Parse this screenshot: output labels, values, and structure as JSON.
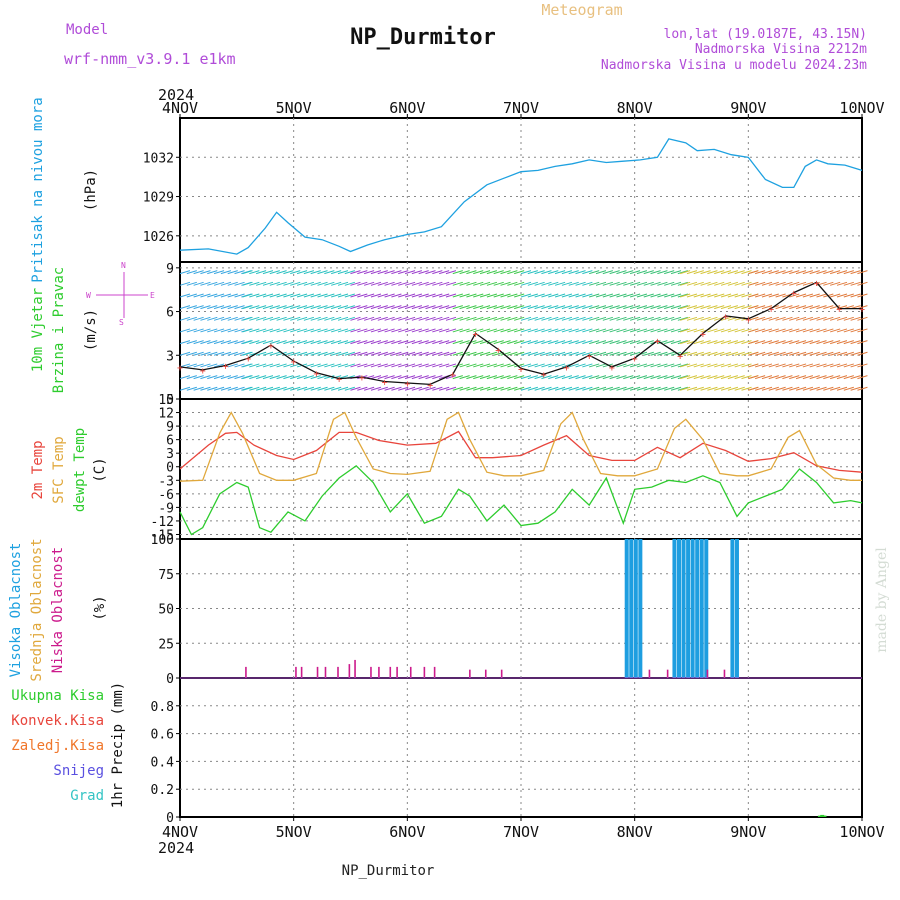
{
  "header": {
    "model_label": "Model",
    "model_name": "wrf-nmm_v3.9.1 e1km",
    "title": "NP_Durmitor",
    "subtitle": "Meteogram",
    "coords": "lon,lat (19.0187E, 43.15N)",
    "elevation": "Nadmorska Visina 2212m",
    "model_elevation": "Nadmorska Visina u modelu 2024.23m",
    "footer_station": "NP_Durmitor",
    "credit": "made by Angel",
    "year": "2024"
  },
  "colors": {
    "pressure": "#1ea1e0",
    "temp2m": "#e8453c",
    "sfc": "#e0a83c",
    "dewpt": "#2ecc2e",
    "high_cloud": "#1e9ee0",
    "low_cloud": "#cc1a8c",
    "wind_label": "#cc44cc",
    "label_purple": "#b04cd8"
  },
  "x_axis": {
    "ticks": [
      "4NOV",
      "5NOV",
      "6NOV",
      "7NOV",
      "8NOV",
      "9NOV",
      "10NOV"
    ]
  },
  "chart_data": [
    {
      "id": "pressure",
      "type": "line",
      "ylabel_name": "Pritisak na nivou mora",
      "ylabel_unit": "(hPa)",
      "ylim": [
        1024,
        1035
      ],
      "yticks": [
        "1026",
        "1029",
        "1032"
      ],
      "grid": true,
      "x_days": [
        0,
        0.25,
        0.5,
        0.6,
        0.75,
        0.85,
        0.95,
        1.1,
        1.25,
        1.4,
        1.5,
        1.65,
        1.8,
        2.0,
        2.15,
        2.3,
        2.5,
        2.7,
        2.85,
        3.0,
        3.15,
        3.3,
        3.45,
        3.6,
        3.75,
        3.9,
        4.05,
        4.2,
        4.3,
        4.45,
        4.55,
        4.7,
        4.85,
        5.0,
        5.15,
        5.3,
        5.4,
        5.5,
        5.6,
        5.7,
        5.85,
        6.0
      ],
      "values": [
        1024.9,
        1025.0,
        1024.6,
        1025.1,
        1026.6,
        1027.8,
        1027.0,
        1025.9,
        1025.7,
        1025.2,
        1024.8,
        1025.3,
        1025.7,
        1026.1,
        1026.3,
        1026.7,
        1028.6,
        1029.9,
        1030.4,
        1030.9,
        1031.0,
        1031.3,
        1031.5,
        1031.8,
        1031.6,
        1031.7,
        1031.8,
        1032.0,
        1033.4,
        1033.1,
        1032.5,
        1032.6,
        1032.2,
        1032.0,
        1030.3,
        1029.7,
        1029.7,
        1031.3,
        1031.8,
        1031.5,
        1031.4,
        1031.0
      ]
    },
    {
      "id": "wind",
      "type": "line",
      "ylabel_name": "10m Vjetar",
      "ylabel_name2": "Brzina i Pravac",
      "ylabel_unit": "(m/s)",
      "compass": "N, E, S, W",
      "ylim": [
        0,
        9.4
      ],
      "yticks": [
        "0",
        "3",
        "6",
        "9"
      ],
      "grid": true,
      "series": [
        {
          "name": "speed",
          "x_days": [
            0,
            0.2,
            0.4,
            0.6,
            0.8,
            1.0,
            1.2,
            1.4,
            1.6,
            1.8,
            2.0,
            2.2,
            2.4,
            2.6,
            2.8,
            3.0,
            3.2,
            3.4,
            3.6,
            3.8,
            4.0,
            4.2,
            4.4,
            4.6,
            4.8,
            5.0,
            5.2,
            5.4,
            5.6,
            5.8,
            6.0
          ],
          "values": [
            2.2,
            2.0,
            2.3,
            2.8,
            3.7,
            2.6,
            1.8,
            1.4,
            1.5,
            1.2,
            1.1,
            1.0,
            1.7,
            4.5,
            3.4,
            2.1,
            1.7,
            2.2,
            3.0,
            2.2,
            2.8,
            4.0,
            3.0,
            4.5,
            5.7,
            5.5,
            6.2,
            7.3,
            8.0,
            6.2,
            6.2
          ]
        }
      ]
    },
    {
      "id": "temperature",
      "type": "line",
      "ylabel_name": "2m Temp",
      "ylabel_name2": "SFC Temp",
      "ylabel_name3": "dewpt Temp",
      "ylabel_unit": "(C)",
      "ylim": [
        -16,
        15
      ],
      "yticks": [
        "-15",
        "-12",
        "-9",
        "-6",
        "-3",
        "0",
        "3",
        "6",
        "9",
        "12",
        "15"
      ],
      "grid": true,
      "series": [
        {
          "name": "2m Temp",
          "x_days": [
            0,
            0.25,
            0.4,
            0.5,
            0.65,
            0.85,
            1.0,
            1.2,
            1.4,
            1.55,
            1.75,
            2.0,
            2.25,
            2.45,
            2.6,
            2.75,
            3.0,
            3.2,
            3.4,
            3.6,
            3.8,
            4.0,
            4.2,
            4.4,
            4.6,
            4.8,
            5.0,
            5.2,
            5.4,
            5.6,
            5.8,
            6.0
          ],
          "values": [
            -0.5,
            4.8,
            7.4,
            7.6,
            4.8,
            2.5,
            1.6,
            3.6,
            7.6,
            7.6,
            5.8,
            4.8,
            5.2,
            7.8,
            2.0,
            2.0,
            2.5,
            4.8,
            6.9,
            2.5,
            1.4,
            1.4,
            4.3,
            2.0,
            5.2,
            3.6,
            1.2,
            1.8,
            3.1,
            0.2,
            -0.8,
            -1.2
          ]
        },
        {
          "name": "SFC Temp",
          "x_days": [
            0,
            0.2,
            0.35,
            0.45,
            0.55,
            0.7,
            0.85,
            1.0,
            1.2,
            1.35,
            1.45,
            1.55,
            1.7,
            1.85,
            2.0,
            2.2,
            2.35,
            2.45,
            2.55,
            2.7,
            2.85,
            3.0,
            3.2,
            3.35,
            3.45,
            3.55,
            3.7,
            3.85,
            4.0,
            4.2,
            4.35,
            4.45,
            4.6,
            4.75,
            4.9,
            5.0,
            5.2,
            5.35,
            5.45,
            5.6,
            5.75,
            5.9,
            6.0
          ],
          "values": [
            -3.2,
            -3.0,
            7.5,
            12.0,
            7.4,
            -1.5,
            -3.0,
            -3.0,
            -1.5,
            10.5,
            12.0,
            6.5,
            -0.5,
            -1.5,
            -1.7,
            -1.0,
            10.5,
            12.0,
            6.0,
            -1.2,
            -2.0,
            -2.0,
            -0.8,
            9.5,
            12.0,
            6.0,
            -1.5,
            -2.0,
            -2.0,
            -0.5,
            8.5,
            10.5,
            6.0,
            -1.5,
            -2.0,
            -2.0,
            -0.5,
            6.5,
            8.0,
            0.5,
            -2.5,
            -3.0,
            -3.0
          ]
        },
        {
          "name": "dewpt Temp",
          "x_days": [
            0,
            0.1,
            0.2,
            0.35,
            0.5,
            0.6,
            0.7,
            0.8,
            0.95,
            1.1,
            1.25,
            1.4,
            1.55,
            1.7,
            1.85,
            2.0,
            2.15,
            2.3,
            2.45,
            2.55,
            2.7,
            2.85,
            3.0,
            3.15,
            3.3,
            3.45,
            3.6,
            3.75,
            3.9,
            4.0,
            4.15,
            4.3,
            4.45,
            4.6,
            4.75,
            4.9,
            5.0,
            5.15,
            5.3,
            5.45,
            5.6,
            5.75,
            5.9,
            6.0
          ],
          "values": [
            -10.0,
            -15.0,
            -13.5,
            -6.0,
            -3.5,
            -4.5,
            -13.5,
            -14.5,
            -10.0,
            -12.0,
            -6.5,
            -2.5,
            0.2,
            -3.5,
            -10.0,
            -6.0,
            -12.5,
            -11.0,
            -5.0,
            -6.5,
            -12.0,
            -8.5,
            -13.0,
            -12.5,
            -10.0,
            -5.0,
            -8.5,
            -2.5,
            -12.5,
            -5.0,
            -4.5,
            -3.0,
            -3.5,
            -2.0,
            -3.5,
            -11.0,
            -8.0,
            -6.5,
            -5.0,
            -0.5,
            -3.5,
            -8.0,
            -7.5,
            -8.0
          ]
        }
      ]
    },
    {
      "id": "clouds",
      "type": "bar",
      "ylabel_name": "Visoka Oblacnost",
      "ylabel_name2": "Srednja Oblacnost",
      "ylabel_name3": "Niska Oblacnost",
      "ylabel_unit": "(%)",
      "ylim": [
        0,
        100
      ],
      "yticks": [
        "0",
        "25",
        "50",
        "75",
        "100"
      ],
      "grid": true,
      "series": [
        {
          "name": "Visoka Oblacnost",
          "x_days": [
            3.93,
            3.97,
            4.01,
            4.05,
            4.35,
            4.39,
            4.43,
            4.47,
            4.51,
            4.55,
            4.59,
            4.63,
            4.86,
            4.9
          ],
          "values": [
            100,
            100,
            100,
            100,
            100,
            100,
            100,
            100,
            100,
            100,
            100,
            100,
            100,
            100
          ]
        },
        {
          "name": "Niska Oblacnost",
          "x_days": [
            0.58,
            1.02,
            1.07,
            1.21,
            1.28,
            1.39,
            1.49,
            1.54,
            1.68,
            1.75,
            1.85,
            1.91,
            2.03,
            2.15,
            2.24,
            2.55,
            2.69,
            2.83,
            4.13,
            4.29,
            4.64,
            4.79
          ],
          "values": [
            8,
            8,
            8,
            8,
            8,
            8,
            10,
            13,
            8,
            8,
            8,
            8,
            8,
            8,
            8,
            6,
            6,
            6,
            6,
            6,
            6,
            6
          ]
        }
      ]
    },
    {
      "id": "precip",
      "type": "bar",
      "ylabel_name": "1hr Precip (mm)",
      "legend": [
        "Ukupna Kisa",
        "Konvek.Kisa",
        "Zaledj.Kisa",
        "Snijeg",
        "Grad"
      ],
      "legend_colors": [
        "#2ecc2e",
        "#e8453c",
        "#f0762a",
        "#5a50e0",
        "#34c4c4"
      ],
      "ylim": [
        0,
        1
      ],
      "yticks": [
        "0",
        "0.2",
        "0.4",
        "0.6",
        "0.8"
      ],
      "grid": true,
      "series": [
        {
          "name": "Ukupna Kisa",
          "x_days": [
            5.63,
            5.65,
            5.67
          ],
          "values": [
            0.01,
            0.015,
            0.01
          ]
        }
      ]
    }
  ]
}
